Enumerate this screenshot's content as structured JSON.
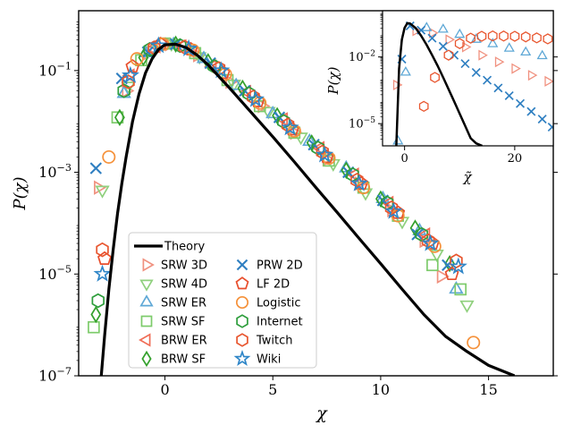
{
  "chart_data": [
    {
      "type": "scatter",
      "title": "",
      "xlabel": "χ",
      "ylabel": "P(χ)",
      "xlim": [
        -4,
        18
      ],
      "ylim": [
        1e-07,
        1.5
      ],
      "yscale": "log",
      "grid": false,
      "legend_placement": "lower-left",
      "xticks": [
        0,
        5,
        10,
        15
      ],
      "xtick_labels": [
        "0",
        "5",
        "10",
        "15"
      ],
      "yticks": [
        0.1,
        0.001,
        1e-05,
        1e-07
      ],
      "ytick_labels": [
        {
          "base": "10",
          "exp": "−1"
        },
        {
          "base": "10",
          "exp": "−3"
        },
        {
          "base": "10",
          "exp": "−5"
        },
        {
          "base": "10",
          "exp": "−7"
        }
      ],
      "theory": {
        "name": "Theory",
        "color": "#000000",
        "x": [
          -2.95,
          -2.8,
          -2.6,
          -2.4,
          -2.2,
          -2.0,
          -1.8,
          -1.5,
          -1.2,
          -0.9,
          -0.6,
          -0.3,
          0,
          0.5,
          1,
          1.5,
          2,
          3,
          4,
          5,
          6,
          7,
          8,
          9,
          10,
          11,
          12,
          13,
          14,
          15,
          16.2
        ],
        "y": [
          1e-07,
          6e-07,
          5e-06,
          3e-05,
          0.00015,
          0.0006,
          0.002,
          0.01,
          0.035,
          0.09,
          0.17,
          0.26,
          0.32,
          0.33,
          0.28,
          0.2,
          0.13,
          0.045,
          0.015,
          0.005,
          0.0016,
          0.0005,
          0.00016,
          5e-05,
          1.6e-05,
          5e-06,
          1.6e-06,
          6e-07,
          3e-07,
          1.6e-07,
          1e-07
        ]
      },
      "series": [
        {
          "name": "SRW 3D",
          "marker": "triangle-right",
          "color": "#f0917f",
          "x": [
            -3.1,
            -1.8,
            -0.8,
            0.2,
            1.5,
            3,
            4.5,
            6,
            7.5,
            9,
            10.5,
            12,
            12.8
          ],
          "y": [
            0.0005,
            0.04,
            0.22,
            0.33,
            0.2,
            0.06,
            0.02,
            0.006,
            0.0018,
            0.0006,
            0.00018,
            4.5e-05,
            9e-06
          ]
        },
        {
          "name": "SRW 4D",
          "marker": "triangle-down",
          "color": "#8fd07d",
          "x": [
            -2.9,
            -1.7,
            -0.6,
            0.3,
            1.6,
            3.2,
            4.8,
            6.3,
            7.8,
            9.3,
            11,
            12.6,
            14
          ],
          "y": [
            0.00045,
            0.05,
            0.25,
            0.34,
            0.19,
            0.055,
            0.016,
            0.005,
            0.0015,
            0.0004,
            0.00011,
            2.5e-05,
            2.5e-06
          ]
        },
        {
          "name": "SRW ER",
          "marker": "triangle-up",
          "color": "#5fa8d6",
          "x": [
            -1.9,
            -0.9,
            0.4,
            1.8,
            3.3,
            5,
            6.7,
            8.4,
            10.1,
            11.8,
            13.5
          ],
          "y": [
            0.035,
            0.22,
            0.32,
            0.17,
            0.05,
            0.014,
            0.004,
            0.0012,
            0.0003,
            7e-05,
            5e-06
          ]
        },
        {
          "name": "SRW SF",
          "marker": "square",
          "color": "#7dcb6b",
          "x": [
            -3.3,
            -2.2,
            -1.1,
            0,
            1.4,
            2.9,
            4.4,
            6,
            7.6,
            9.2,
            10.8,
            12.4,
            13.7
          ],
          "y": [
            9e-07,
            0.012,
            0.16,
            0.34,
            0.22,
            0.065,
            0.02,
            0.006,
            0.0017,
            0.0005,
            0.00014,
            1.5e-05,
            5e-06
          ]
        },
        {
          "name": "BRW ER",
          "marker": "triangle-left",
          "color": "#f06d56",
          "x": [
            -1.6,
            -0.4,
            0.8,
            2.2,
            3.8,
            5.5,
            7.2,
            8.8,
            10.4,
            12.1
          ],
          "y": [
            0.08,
            0.3,
            0.3,
            0.12,
            0.038,
            0.011,
            0.003,
            0.0009,
            0.00025,
            6e-05
          ]
        },
        {
          "name": "BRW SF",
          "marker": "diamond",
          "color": "#33a02c",
          "x": [
            -3.2,
            -2.1,
            -1.0,
            0.5,
            2,
            3.6,
            5.2,
            6.8,
            8.4,
            10,
            11.6,
            13.2
          ],
          "y": [
            1.6e-06,
            0.012,
            0.18,
            0.33,
            0.15,
            0.045,
            0.013,
            0.0038,
            0.0011,
            0.0003,
            8e-05,
            1.6e-05
          ]
        },
        {
          "name": "PRW 2D",
          "marker": "x",
          "color": "#2f7fc1",
          "x": [
            -3.2,
            -2.0,
            -0.8,
            0.5,
            2.1,
            3.7,
            5.3,
            6.9,
            8.5,
            10.1,
            11.7,
            13.1
          ],
          "y": [
            0.0012,
            0.07,
            0.23,
            0.33,
            0.14,
            0.04,
            0.012,
            0.0035,
            0.001,
            0.00028,
            6e-05,
            1.5e-05
          ]
        },
        {
          "name": "LF 2D",
          "marker": "pentagon",
          "color": "#e84e2c",
          "x": [
            -2.8,
            -1.5,
            -0.2,
            1.2,
            2.7,
            4.3,
            5.9,
            7.5,
            9.1,
            10.8,
            12.4,
            13.3
          ],
          "y": [
            2e-05,
            0.12,
            0.33,
            0.26,
            0.09,
            0.025,
            0.007,
            0.002,
            0.0006,
            0.00016,
            4e-05,
            1e-05
          ]
        },
        {
          "name": "Logistic",
          "marker": "circle",
          "color": "#f5913a",
          "x": [
            -2.6,
            -1.3,
            -0.1,
            1.3,
            2.8,
            4.4,
            6,
            7.6,
            9.2,
            10.8,
            12.5,
            14.3
          ],
          "y": [
            0.002,
            0.17,
            0.33,
            0.25,
            0.085,
            0.023,
            0.0065,
            0.0019,
            0.0005,
            0.00014,
            3.5e-05,
            4.5e-07
          ]
        },
        {
          "name": "Internet",
          "marker": "hexagon",
          "color": "#2e9e3c",
          "x": [
            -3.1,
            -1.9,
            -0.7,
            0.7,
            2.3,
            3.9,
            5.5,
            7.1,
            8.7,
            10.3,
            11.9
          ],
          "y": [
            3e-06,
            0.04,
            0.26,
            0.31,
            0.12,
            0.035,
            0.01,
            0.003,
            0.0009,
            0.00025,
            6e-05
          ]
        },
        {
          "name": "Twitch",
          "marker": "hexagon",
          "color": "#e8562f",
          "x": [
            -2.9,
            -1.7,
            -0.5,
            0.9,
            2.5,
            4.1,
            5.7,
            7.3,
            8.9,
            10.5,
            12.2,
            13.5
          ],
          "y": [
            3e-05,
            0.06,
            0.28,
            0.29,
            0.11,
            0.03,
            0.0085,
            0.0025,
            0.0007,
            0.0002,
            4.5e-05,
            1.8e-05
          ]
        },
        {
          "name": "Wiki",
          "marker": "star",
          "color": "#2f86c8",
          "x": [
            -2.9,
            -1.6,
            -0.3,
            1.1,
            2.6,
            4.2,
            5.8,
            7.4,
            9,
            10.6,
            12.3,
            13.6
          ],
          "y": [
            1e-05,
            0.08,
            0.31,
            0.27,
            0.1,
            0.027,
            0.0075,
            0.0022,
            0.0006,
            0.00017,
            4e-05,
            1.4e-05
          ]
        }
      ]
    },
    {
      "type": "scatter",
      "title": "",
      "xlabel": "χ̃",
      "ylabel": "P(χ)",
      "xlim": [
        -4,
        27
      ],
      "ylim": [
        1e-06,
        1.2
      ],
      "yscale": "log",
      "grid": false,
      "placement": "inset-top-right",
      "xticks": [
        0,
        20
      ],
      "xtick_labels": [
        "0",
        "20"
      ],
      "yticks": [
        0.01,
        1e-05
      ],
      "ytick_labels": [
        {
          "base": "10",
          "exp": "−2"
        },
        {
          "base": "10",
          "exp": "−5"
        }
      ],
      "theory": {
        "name": "Theory",
        "color": "#000000",
        "x": [
          -1.5,
          -1.0,
          -0.5,
          0,
          0.5,
          1,
          2,
          3,
          4,
          5,
          6,
          7,
          8,
          9,
          10,
          11,
          12,
          13,
          14.1
        ],
        "y": [
          1e-06,
          0.003,
          0.06,
          0.2,
          0.33,
          0.32,
          0.2,
          0.09,
          0.035,
          0.012,
          0.004,
          0.0012,
          0.00035,
          0.0001,
          2.8e-05,
          8e-06,
          2.2e-06,
          1.3e-06,
          1e-06
        ]
      },
      "series": [
        {
          "name": "SRW 3D",
          "marker": "triangle-right",
          "color": "#f0917f",
          "x": [
            -1.5,
            2,
            5,
            8,
            11,
            14,
            17,
            20,
            23,
            26
          ],
          "y": [
            0.00055,
            0.15,
            0.12,
            0.06,
            0.028,
            0.012,
            0.006,
            0.003,
            0.0015,
            0.0008
          ]
        },
        {
          "name": "SRW ER",
          "marker": "triangle-up",
          "color": "#5fa8d6",
          "x": [
            -1.2,
            0.2,
            4,
            7,
            10,
            13,
            16,
            19,
            22,
            25
          ],
          "y": [
            1.6e-06,
            0.002,
            0.2,
            0.17,
            0.1,
            0.06,
            0.038,
            0.024,
            0.016,
            0.011
          ]
        },
        {
          "name": "PRW 2D",
          "marker": "x",
          "color": "#2f7fc1",
          "x": [
            -0.5,
            1,
            3,
            5,
            7,
            9,
            11,
            13,
            15,
            17,
            19,
            21,
            23,
            25,
            26.8
          ],
          "y": [
            0.008,
            0.25,
            0.16,
            0.07,
            0.03,
            0.012,
            0.005,
            0.002,
            0.0009,
            0.0004,
            0.00018,
            8e-05,
            3.5e-05,
            1.6e-05,
            7e-06
          ]
        },
        {
          "name": "Twitch",
          "marker": "hexagon",
          "color": "#e8562f",
          "x": [
            3.5,
            5.5,
            8,
            10,
            12,
            14,
            16,
            18,
            20,
            22,
            24,
            26
          ],
          "y": [
            6e-05,
            0.0012,
            0.012,
            0.04,
            0.07,
            0.085,
            0.088,
            0.087,
            0.085,
            0.08,
            0.072,
            0.065
          ]
        }
      ]
    }
  ]
}
